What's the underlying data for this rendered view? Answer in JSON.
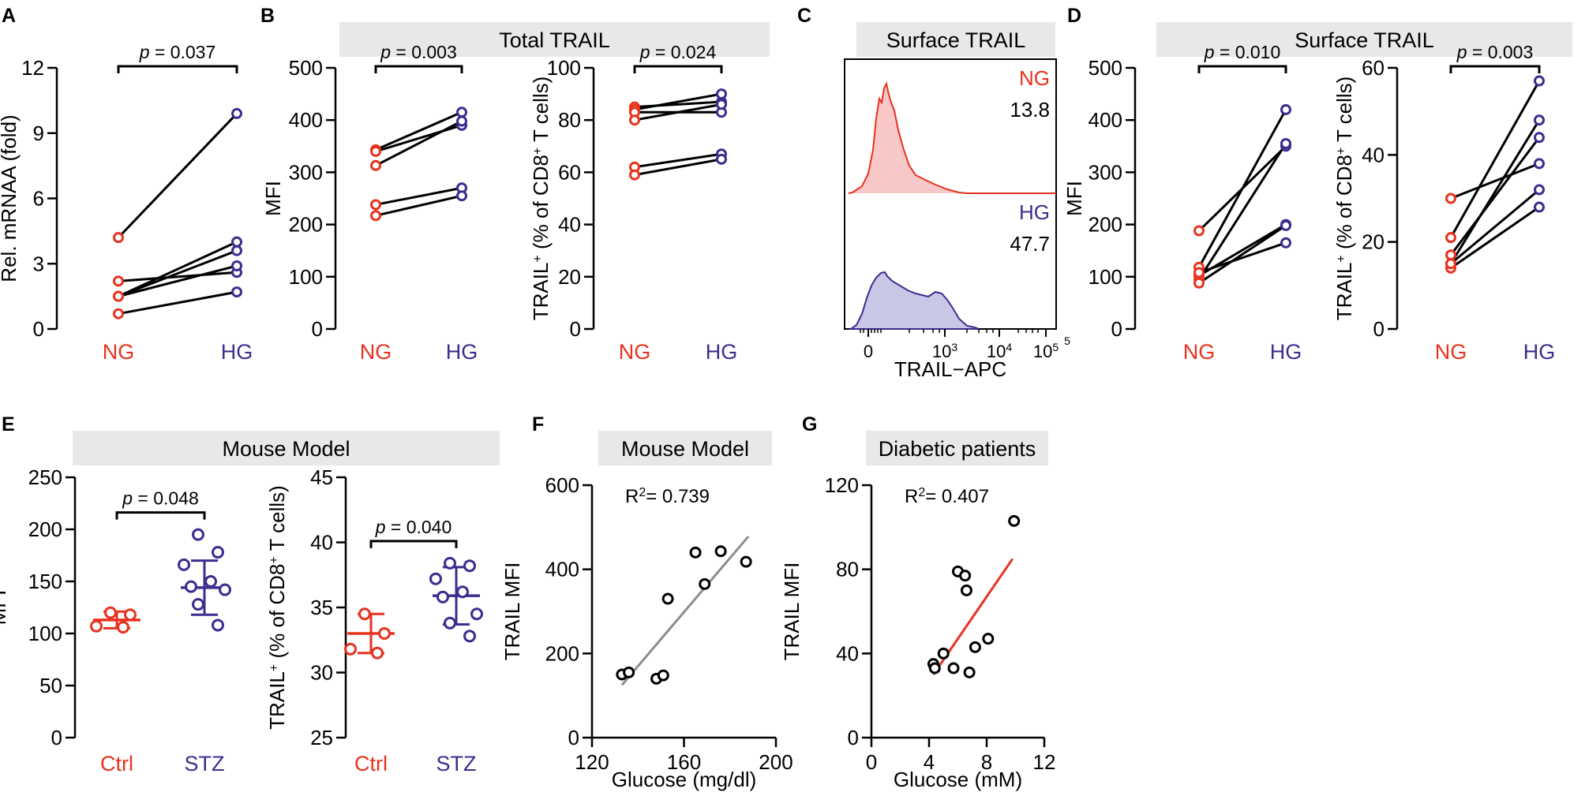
{
  "colors": {
    "ng": "#e8321e",
    "hg": "#3d2c8f",
    "axis": "#000000",
    "banner": "#e8e8e8",
    "fit_gray": "#8c8c8c",
    "fit_red": "#e8321e",
    "hist_ng_fill": "#f8c8c8",
    "hist_hg_fill": "#c8c8e6"
  },
  "panel_letters": [
    "A",
    "B",
    "C",
    "D",
    "E",
    "F",
    "G"
  ],
  "banners": {
    "B": "Total TRAIL",
    "C": "Surface TRAIL",
    "D": "Surface TRAIL",
    "E": "Mouse Model",
    "F": "Mouse Model",
    "G": "Diabetic patients"
  },
  "chart_data": [
    {
      "id": "A",
      "type": "paired-line",
      "ylabel": "Rel. mRNAA (fold)",
      "categories": [
        "NG",
        "HG"
      ],
      "ylim": [
        0,
        12
      ],
      "yticks": [
        "0",
        "3",
        "6",
        "9",
        "12"
      ],
      "p_label": "p",
      "p_value": " = 0.037",
      "pairs": [
        [
          4.2,
          9.9
        ],
        [
          2.2,
          2.6
        ],
        [
          1.5,
          3.6
        ],
        [
          1.5,
          4.0
        ],
        [
          0.7,
          1.7
        ],
        [
          1.5,
          2.9
        ]
      ]
    },
    {
      "id": "B1",
      "type": "paired-line",
      "ylabel": "MFI",
      "categories": [
        "NG",
        "HG"
      ],
      "ylim": [
        0,
        500
      ],
      "yticks": [
        "0",
        "100",
        "200",
        "300",
        "400",
        "500"
      ],
      "p_label": "p",
      "p_value": " = 0.003",
      "pairs": [
        [
          343,
          415
        ],
        [
          340,
          390
        ],
        [
          313,
          398
        ],
        [
          238,
          270
        ],
        [
          217,
          255
        ]
      ]
    },
    {
      "id": "B2",
      "type": "paired-line",
      "ylabel_pre": "TRAIL",
      "ylabel_sup": "+",
      "ylabel_mid": " (% of CD8",
      "ylabel_sup2": "+",
      "ylabel_post": " T cells)",
      "categories": [
        "NG",
        "HG"
      ],
      "ylim": [
        0,
        100
      ],
      "yticks": [
        "0",
        "20",
        "40",
        "60",
        "80",
        "100"
      ],
      "p_label": "p",
      "p_value": " = 0.024",
      "pairs": [
        [
          85,
          87
        ],
        [
          84,
          90
        ],
        [
          83,
          83
        ],
        [
          80,
          86
        ],
        [
          62,
          67
        ],
        [
          59,
          65
        ]
      ]
    },
    {
      "id": "C",
      "type": "histogram",
      "xlabel": "TRAIL−APC",
      "xticks": [
        {
          "base": "0",
          "exp": ""
        },
        {
          "base": "10",
          "exp": "3"
        },
        {
          "base": "10",
          "exp": "4"
        },
        {
          "base": "10",
          "exp": "5"
        }
      ],
      "tick_extra": "5",
      "series": [
        {
          "name": "NG",
          "value": "13.8"
        },
        {
          "name": "HG",
          "value": "47.7"
        }
      ]
    },
    {
      "id": "D1",
      "type": "paired-line",
      "ylabel": "MFI",
      "categories": [
        "NG",
        "HG"
      ],
      "ylim": [
        0,
        500
      ],
      "yticks": [
        "0",
        "100",
        "200",
        "300",
        "400",
        "500"
      ],
      "p_label": "p",
      "p_value": " = 0.010",
      "pairs": [
        [
          188,
          350
        ],
        [
          118,
          420
        ],
        [
          102,
          200
        ],
        [
          95,
          355
        ],
        [
          88,
          198
        ],
        [
          108,
          165
        ]
      ]
    },
    {
      "id": "D2",
      "type": "paired-line",
      "ylabel_pre": "TRAIL",
      "ylabel_sup": "+",
      "ylabel_mid": " (% of CD8",
      "ylabel_sup2": "+",
      "ylabel_post": " T cells)",
      "categories": [
        "NG",
        "HG"
      ],
      "ylim": [
        0,
        60
      ],
      "yticks": [
        "0",
        "20",
        "40",
        "60"
      ],
      "p_label": "p",
      "p_value": " = 0.003",
      "pairs": [
        [
          30,
          38
        ],
        [
          21,
          57
        ],
        [
          17,
          44
        ],
        [
          15,
          48
        ],
        [
          14,
          28
        ],
        [
          15,
          32
        ]
      ]
    },
    {
      "id": "E1",
      "type": "dot-mean-sd",
      "ylabel": "MFI",
      "categories": [
        "Ctrl",
        "STZ"
      ],
      "ylim": [
        0,
        250
      ],
      "yticks": [
        "0",
        "50",
        "100",
        "150",
        "200",
        "250"
      ],
      "p_label": "p",
      "p_value": " = 0.048",
      "groups": [
        {
          "points": [
            120,
            118,
            107,
            106
          ],
          "mean": 113,
          "sd": 8
        },
        {
          "points": [
            195,
            178,
            166,
            150,
            145,
            142,
            128,
            108
          ],
          "mean": 144,
          "sd": 26
        }
      ]
    },
    {
      "id": "E2",
      "type": "dot-mean-sd",
      "ylabel_pre": "TRAIL",
      "ylabel_sup": "+",
      "ylabel_mid": " (% of CD8",
      "ylabel_sup2": "+",
      "ylabel_post": " T cells)",
      "categories": [
        "Ctrl",
        "STZ"
      ],
      "ylim": [
        25,
        45
      ],
      "yticks": [
        "25",
        "30",
        "35",
        "40",
        "45"
      ],
      "p_label": "p",
      "p_value": " = 0.040",
      "groups": [
        {
          "points": [
            34.5,
            33.0,
            31.8,
            31.5
          ],
          "mean": 33.0,
          "sd": 1.5
        },
        {
          "points": [
            38.4,
            38.2,
            37.2,
            36.2,
            35.8,
            34.5,
            33.8,
            32.8
          ],
          "mean": 35.9,
          "sd": 2.2
        }
      ]
    },
    {
      "id": "F",
      "type": "scatter",
      "xlabel": "Glucose (mg/dl)",
      "ylabel": "TRAIL MFI",
      "xlim": [
        120,
        200
      ],
      "ylim": [
        0,
        600
      ],
      "xticks": [
        "120",
        "160",
        "200"
      ],
      "yticks": [
        "0",
        "200",
        "400",
        "600"
      ],
      "r2_pre": "R",
      "r2_sup": "2",
      "r2_post": "= 0.739",
      "points": [
        [
          133,
          150
        ],
        [
          136,
          155
        ],
        [
          148,
          140
        ],
        [
          151,
          148
        ],
        [
          153,
          330
        ],
        [
          165,
          440
        ],
        [
          169,
          365
        ],
        [
          176,
          443
        ],
        [
          187,
          418
        ]
      ],
      "fit": [
        [
          133,
          125
        ],
        [
          188,
          478
        ]
      ]
    },
    {
      "id": "G",
      "type": "scatter",
      "xlabel": "Glucose (mM)",
      "ylabel": "TRAIL MFI",
      "xlim": [
        0,
        12
      ],
      "ylim": [
        0,
        120
      ],
      "xticks": [
        "0",
        "4",
        "8",
        "12"
      ],
      "yticks": [
        "0",
        "40",
        "80",
        "120"
      ],
      "r2_pre": "R",
      "r2_sup": "2",
      "r2_post": "= 0.407",
      "points": [
        [
          4.3,
          35
        ],
        [
          4.4,
          33
        ],
        [
          5.0,
          40
        ],
        [
          5.7,
          33
        ],
        [
          6.0,
          79
        ],
        [
          6.5,
          77
        ],
        [
          6.6,
          70
        ],
        [
          6.8,
          31
        ],
        [
          7.2,
          43
        ],
        [
          8.1,
          47
        ],
        [
          9.9,
          103
        ]
      ],
      "fit": [
        [
          4.3,
          30
        ],
        [
          9.8,
          85
        ]
      ]
    }
  ]
}
